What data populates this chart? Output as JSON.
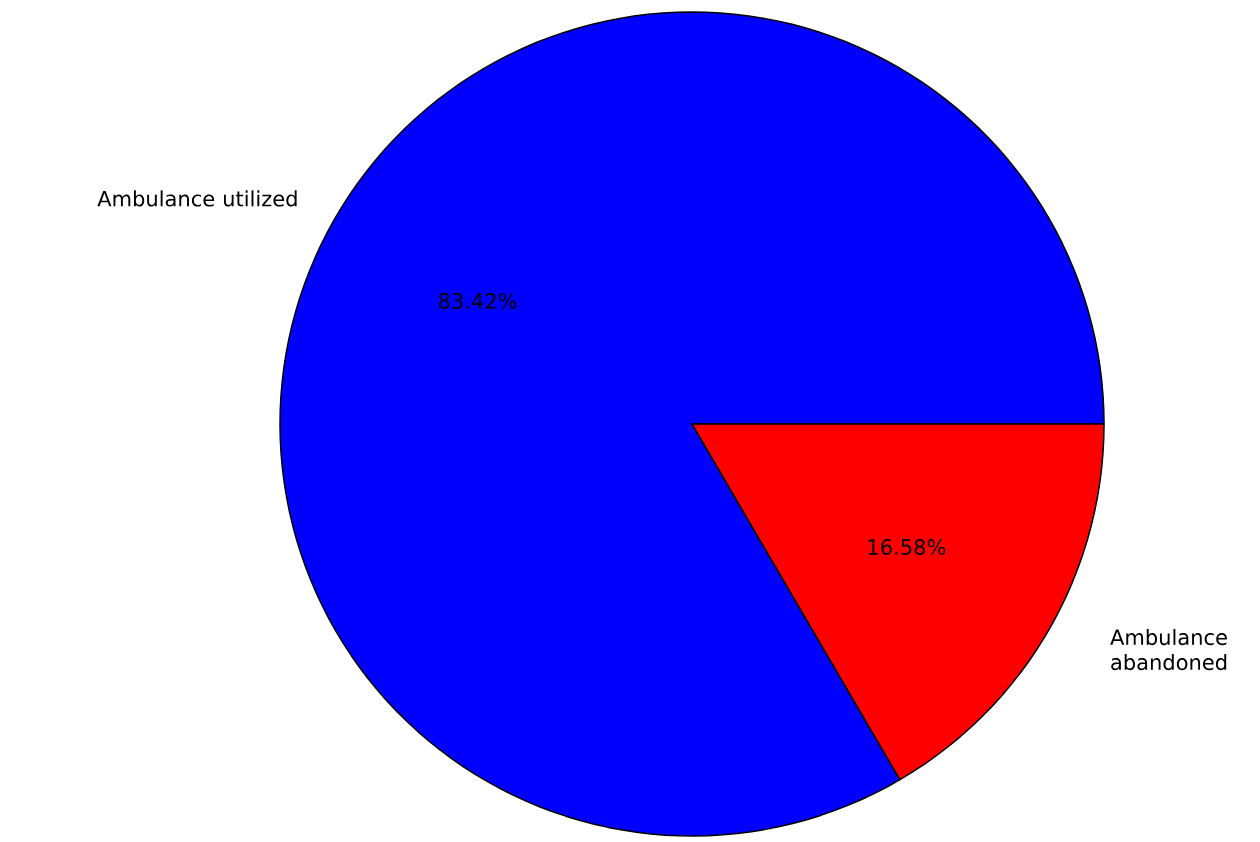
{
  "chart_data": {
    "type": "pie",
    "categories": [
      "Ambulance utilized",
      "Ambulance abandoned"
    ],
    "values": [
      83.42,
      16.58
    ],
    "colors": [
      "#0000ff",
      "#ff0000"
    ],
    "value_labels": [
      "83.42%",
      "16.58%"
    ]
  }
}
